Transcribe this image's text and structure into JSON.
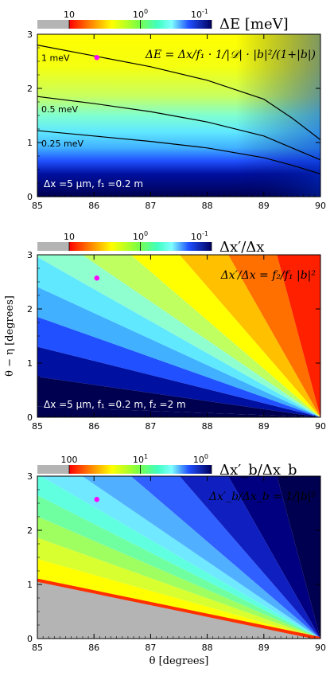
{
  "chart_data": [
    {
      "type": "heatmap",
      "panel": "top",
      "colorbar": {
        "title": "ΔE [meV]",
        "ticks": [
          "10",
          "10",
          "10"
        ],
        "tick_exponents": [
          "",
          "0",
          "-1"
        ],
        "scale": "log"
      },
      "formula": "ΔE = Δx/f₁ · 1/|𝒟| · |b|²/(1+|b|)",
      "annotation": "Δx =5 μm, f₁ =0.2 m",
      "contours": [
        {
          "label": "1 meV",
          "x": [
            85,
            86,
            87,
            88,
            89,
            89.5,
            90
          ],
          "y": [
            2.8,
            2.6,
            2.4,
            2.15,
            1.8,
            1.45,
            1.05
          ]
        },
        {
          "label": "0.5 meV",
          "x": [
            85,
            86,
            87,
            88,
            89,
            89.5,
            90
          ],
          "y": [
            1.85,
            1.72,
            1.57,
            1.38,
            1.12,
            0.9,
            0.68
          ]
        },
        {
          "label": "0.25 meV",
          "x": [
            85,
            86,
            87,
            88,
            89,
            89.5,
            90
          ],
          "y": [
            1.22,
            1.12,
            1.02,
            0.9,
            0.72,
            0.58,
            0.42
          ]
        }
      ],
      "marker": {
        "x": 86.05,
        "y": 2.57
      },
      "xlim": [
        85,
        90
      ],
      "ylim": [
        0,
        3
      ],
      "xticks": [
        "85",
        "86",
        "87",
        "88",
        "89",
        "90"
      ],
      "yticks": [
        "0",
        "1",
        "2",
        "3"
      ]
    },
    {
      "type": "heatmap",
      "panel": "middle",
      "colorbar": {
        "title": "Δx′/Δx",
        "ticks": [
          "10",
          "10",
          "10"
        ],
        "tick_exponents": [
          "",
          "0",
          "-1"
        ],
        "scale": "log"
      },
      "formula": "Δx′/Δx = f₂/f₁ |b|²",
      "annotation": "Δx =5 μm, f₁ =0.2 m, f₂ =2 m",
      "marker": {
        "x": 86.05,
        "y": 2.57
      },
      "xlim": [
        85,
        90
      ],
      "ylim": [
        0,
        3
      ],
      "ylabel": "θ − η [degrees]",
      "xticks": [
        "85",
        "86",
        "87",
        "88",
        "89",
        "90"
      ],
      "yticks": [
        "0",
        "1",
        "2",
        "3"
      ]
    },
    {
      "type": "heatmap",
      "panel": "bottom",
      "colorbar": {
        "title": "Δx′_b/Δx_b",
        "ticks": [
          "100",
          "10",
          "10"
        ],
        "tick_exponents": [
          "",
          "1",
          "0"
        ],
        "scale": "log"
      },
      "formula": "Δx′_b/Δx_b = 1/|b|²",
      "marker": {
        "x": 86.05,
        "y": 2.57
      },
      "xlim": [
        85,
        90
      ],
      "ylim": [
        0,
        3
      ],
      "xlabel": "θ [degrees]",
      "xticks": [
        "85",
        "86",
        "87",
        "88",
        "89",
        "90"
      ],
      "yticks": [
        "0",
        "1",
        "2",
        "3"
      ]
    }
  ]
}
